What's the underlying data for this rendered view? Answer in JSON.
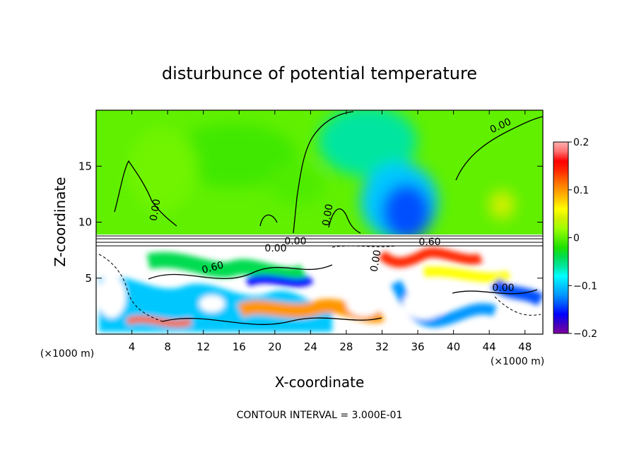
{
  "chart_data": {
    "type": "heatmap",
    "title": "disturbunce of potential temperature",
    "xlabel": "X-coordinate",
    "ylabel": "Z-coordinate",
    "x_unit": "(×1000 m)",
    "y_unit": "(×1000 m)",
    "xlim": [
      0,
      50
    ],
    "ylim": [
      0,
      20
    ],
    "x_ticks": [
      4,
      8,
      12,
      16,
      20,
      24,
      28,
      32,
      36,
      40,
      44,
      48
    ],
    "y_ticks": [
      5,
      10,
      15
    ],
    "colorbar": {
      "range": [
        -0.2,
        0.2
      ],
      "tick_values": [
        0.2,
        0.1,
        0,
        -0.1,
        -0.2
      ],
      "tick_labels": [
        "0.2",
        "0.1",
        "0",
        "−0.1",
        "−0.2"
      ],
      "colors": [
        "#8000a0",
        "#4000c0",
        "#0000ff",
        "#0050ff",
        "#0096ff",
        "#00c8ff",
        "#00ffff",
        "#00e6a0",
        "#00dc50",
        "#20e000",
        "#60f000",
        "#a0ff00",
        "#d2f000",
        "#ffff00",
        "#ffc800",
        "#ff9600",
        "#ff6400",
        "#ff2800",
        "#ff0000",
        "#ff7070",
        "#ffb0b0"
      ]
    },
    "contour_interval_text": "CONTOUR INTERVAL = 3.000E-01",
    "contour_labels": [
      "0.00",
      "0.00",
      "0.00",
      "0.00",
      "0.00",
      "0.60",
      "0.00",
      "0.00",
      "0.60"
    ]
  }
}
